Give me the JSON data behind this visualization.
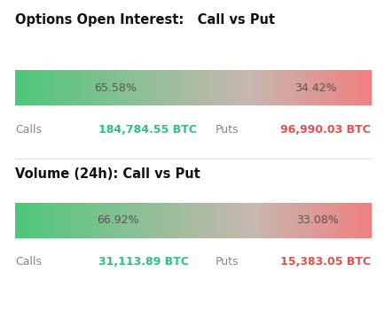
{
  "title1": "Options Open Interest:   Call vs Put",
  "call_pct1": 65.58,
  "put_pct1": 34.42,
  "calls_value1": "184,784.55 BTC",
  "puts_value1": "96,990.03 BTC",
  "title2": "Volume (24h): Call vs Put",
  "call_pct2": 66.92,
  "put_pct2": 33.08,
  "calls_value2": "31,113.89 BTC",
  "puts_value2": "15,383.05 BTC",
  "bg_color": "#ffffff",
  "green_color": "#4dc87a",
  "red_color": "#f08080",
  "mid_color": "#c8b8b0",
  "call_text_color": "#2ec080",
  "put_text_color": "#e05050",
  "label_color": "#888888",
  "title_color": "#111111",
  "bar_pct_color": "#555555",
  "divider_color": "#dddddd"
}
